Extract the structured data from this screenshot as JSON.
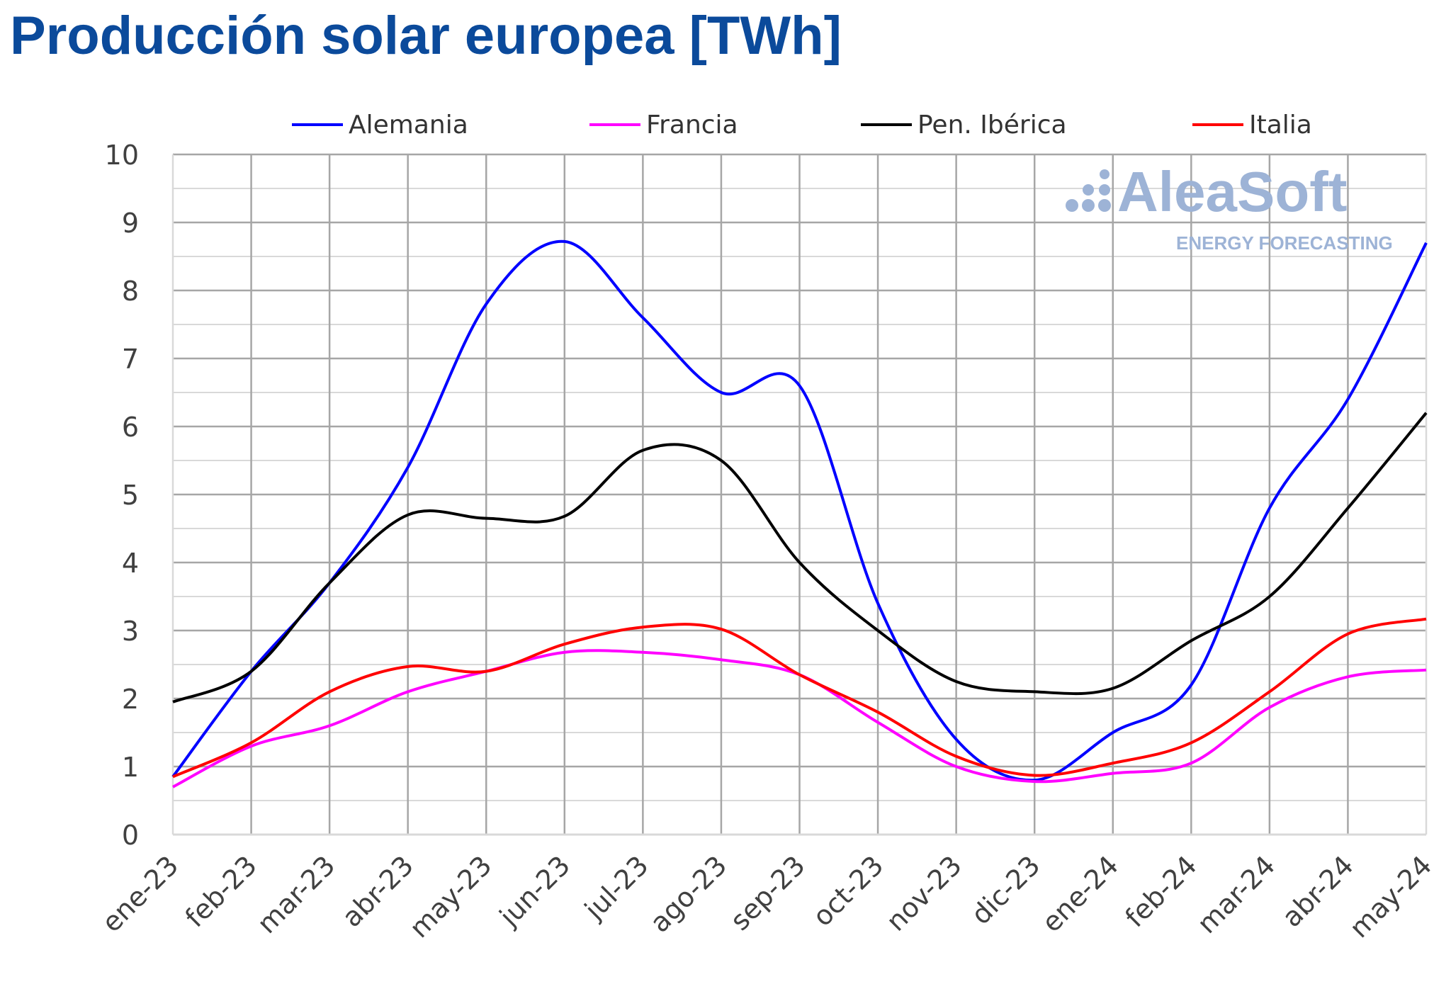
{
  "chart_data": {
    "type": "line",
    "title": "Producción solar europea [TWh]",
    "xlabel": "",
    "ylabel": "",
    "ylim": [
      0,
      10
    ],
    "yticks": [
      0,
      1,
      2,
      3,
      4,
      5,
      6,
      7,
      8,
      9,
      10
    ],
    "grid": true,
    "legend_position": "top",
    "categories": [
      "ene-23",
      "feb-23",
      "mar-23",
      "abr-23",
      "may-23",
      "jun-23",
      "jul-23",
      "ago-23",
      "sep-23",
      "oct-23",
      "nov-23",
      "dic-23",
      "ene-24",
      "feb-24",
      "mar-24",
      "abr-24",
      "may-24"
    ],
    "series": [
      {
        "name": "Alemania",
        "color": "#0000ff",
        "values": [
          0.85,
          2.4,
          3.7,
          5.4,
          7.8,
          8.72,
          7.6,
          6.5,
          6.6,
          3.4,
          1.4,
          0.8,
          1.5,
          2.2,
          4.8,
          6.4,
          8.7
        ]
      },
      {
        "name": "Francia",
        "color": "#ff00ff",
        "values": [
          0.7,
          1.3,
          1.6,
          2.1,
          2.4,
          2.68,
          2.68,
          2.57,
          2.35,
          1.65,
          1.0,
          0.78,
          0.9,
          1.05,
          1.87,
          2.32,
          2.42
        ]
      },
      {
        "name": "Pen. Ibérica",
        "color": "#000000",
        "values": [
          1.95,
          2.4,
          3.7,
          4.7,
          4.65,
          4.68,
          5.65,
          5.5,
          4.0,
          3.0,
          2.25,
          2.1,
          2.15,
          2.85,
          3.5,
          4.8,
          6.2
        ]
      },
      {
        "name": "Italia",
        "color": "#ff0000",
        "values": [
          0.85,
          1.35,
          2.1,
          2.47,
          2.4,
          2.8,
          3.05,
          3.02,
          2.35,
          1.8,
          1.15,
          0.87,
          1.05,
          1.35,
          2.1,
          2.95,
          3.17
        ]
      }
    ]
  },
  "watermark": {
    "brand": "AleaSoft",
    "tagline": "ENERGY FORECASTING",
    "color": "#9db3d6"
  }
}
